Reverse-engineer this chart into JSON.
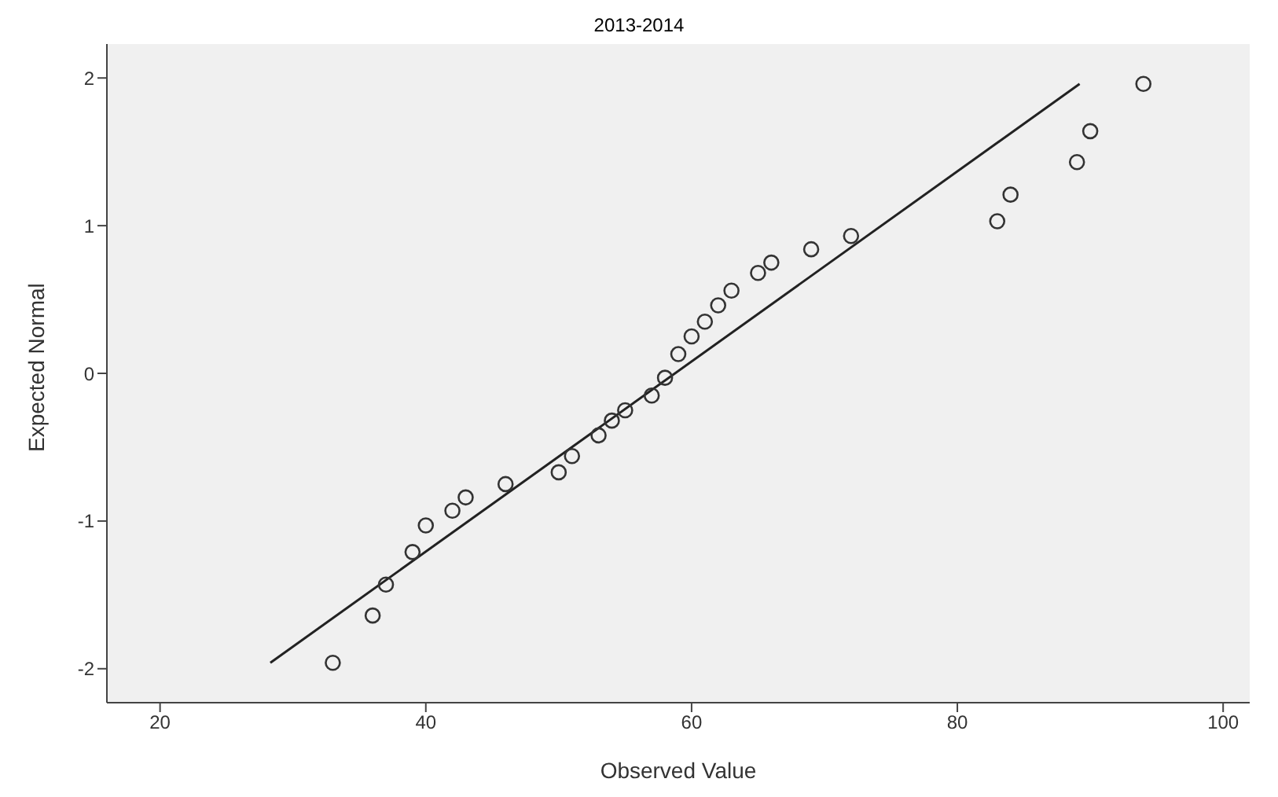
{
  "chart_data": {
    "type": "scatter",
    "title": "2013-2014",
    "xlabel": "Observed Value",
    "ylabel": "Expected Normal",
    "xlim": [
      16,
      102
    ],
    "xticks": [
      20,
      40,
      60,
      80,
      100
    ],
    "ylim": [
      -2.23,
      2.23
    ],
    "yticks": [
      -2,
      -1,
      0,
      1,
      2
    ],
    "grid": false,
    "legend": false,
    "series": [
      {
        "marker": "circle",
        "color": "#333333",
        "x": [
          33,
          36,
          37,
          39,
          40,
          42,
          43,
          46,
          50,
          51,
          53,
          54,
          55,
          57,
          58,
          59,
          60,
          61,
          62,
          63,
          65,
          66,
          69,
          72,
          83,
          84,
          89,
          90,
          94
        ],
        "values": [
          -1.96,
          -1.64,
          -1.43,
          -1.21,
          -1.03,
          -0.93,
          -0.84,
          -0.75,
          -0.67,
          -0.56,
          -0.42,
          -0.32,
          -0.25,
          -0.15,
          -0.03,
          0.13,
          0.25,
          0.35,
          0.46,
          0.56,
          0.68,
          0.75,
          0.84,
          0.93,
          1.03,
          1.21,
          1.43,
          1.64,
          1.96
        ]
      },
      {
        "type": "line",
        "marker": "none",
        "color": "#222222",
        "x": [
          28.3,
          89.2
        ],
        "values": [
          -1.96,
          1.96
        ]
      }
    ]
  }
}
